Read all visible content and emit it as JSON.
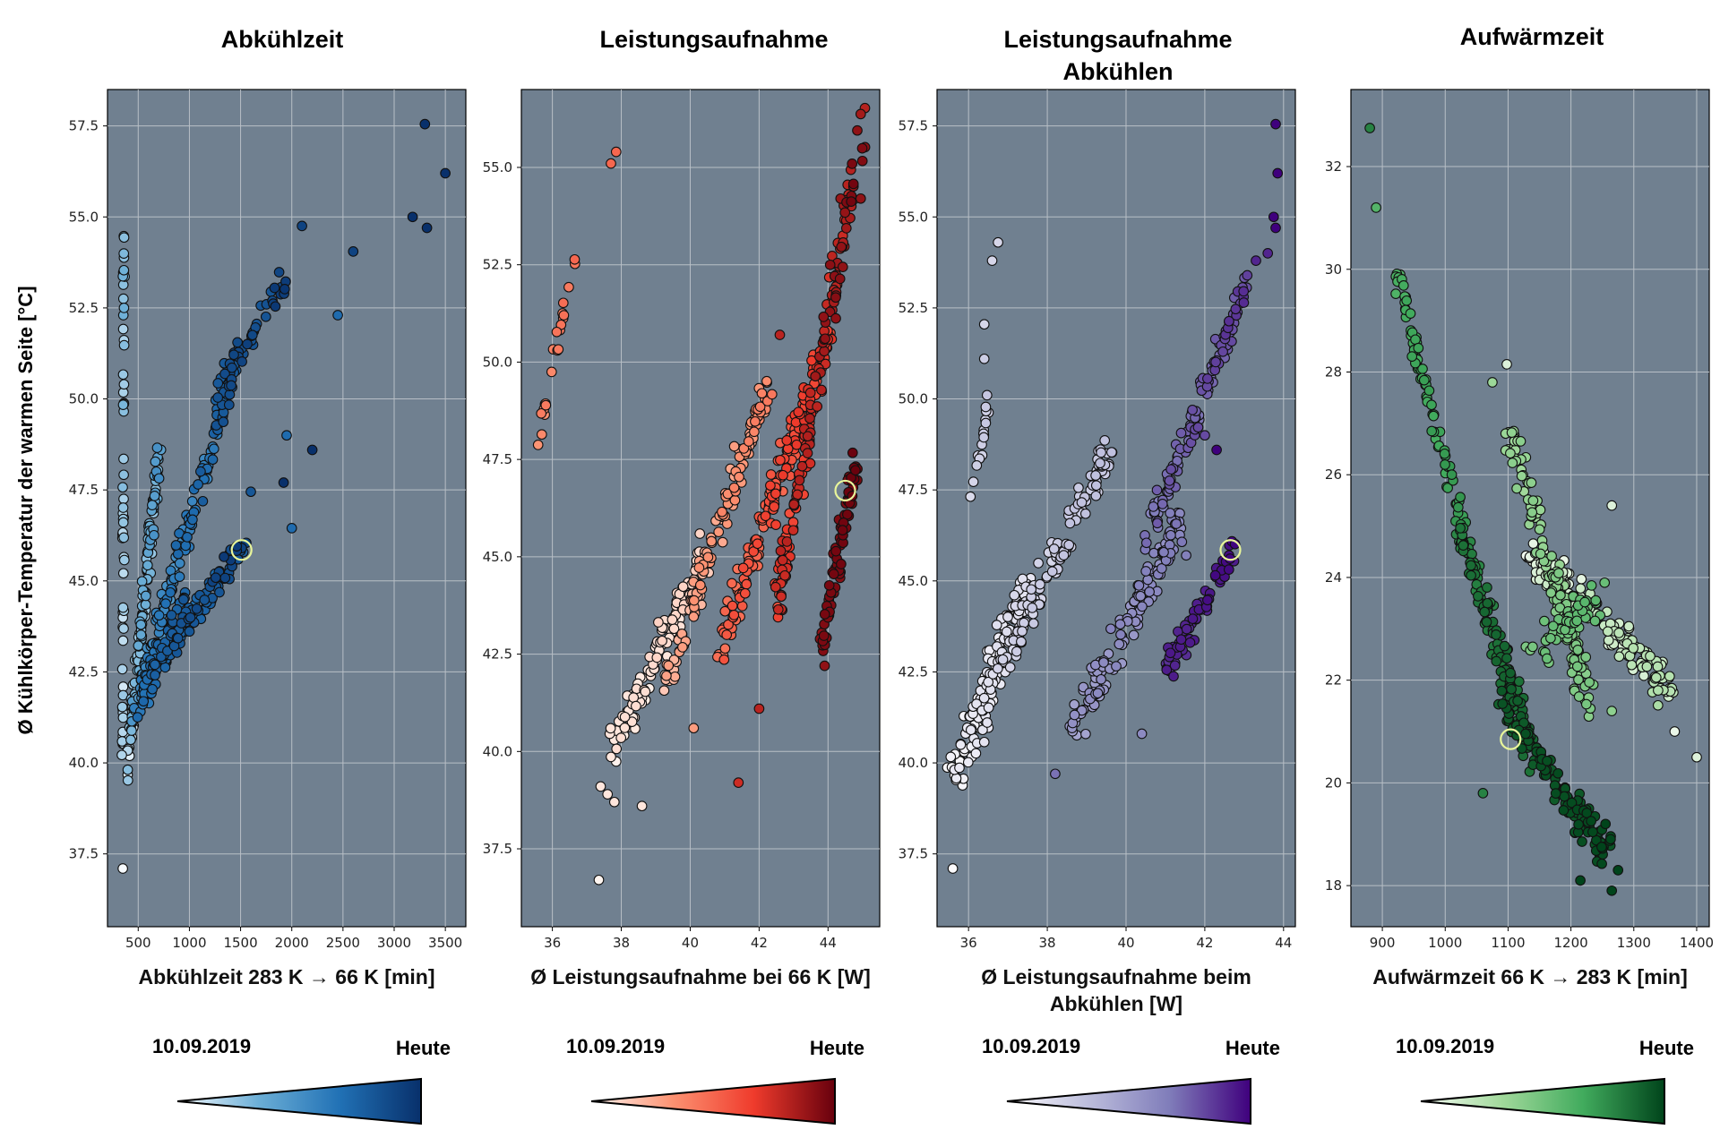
{
  "ylabel": "Ø Kühlkörper-Temperatur der warmen Seite [°C]",
  "chart_data": [
    {
      "type": "scatter",
      "title": "Abkühlzeit",
      "xlabel": "Abkühlzeit 283 K → 66 K [min]",
      "xlim": [
        200,
        3700
      ],
      "ylim": [
        35.5,
        58.5
      ],
      "xticks": [
        500,
        1000,
        1500,
        2000,
        2500,
        3000,
        3500
      ],
      "yticks": [
        37.5,
        40.0,
        42.5,
        45.0,
        47.5,
        50.0,
        52.5,
        55.0,
        57.5
      ],
      "grid": true,
      "colormap": [
        "#f7fbff",
        "#6baed6",
        "#2171b5",
        "#08306b"
      ],
      "legend": {
        "start": "10.09.2019",
        "end": "Heute"
      },
      "highlight": [
        1510,
        45.85
      ],
      "clusters": [
        {
          "a": [
            350,
            40.0
          ],
          "b": [
            360,
            54.3
          ],
          "n": 60,
          "j": [
            15,
            0.35
          ],
          "t": [
            0.05,
            0.35
          ]
        },
        {
          "a": [
            380,
            39.5
          ],
          "b": [
            700,
            48.5
          ],
          "n": 140,
          "j": [
            40,
            0.5
          ],
          "t": [
            0.0,
            0.55
          ]
        },
        {
          "a": [
            420,
            41.0
          ],
          "b": [
            1500,
            51.5
          ],
          "n": 160,
          "j": [
            60,
            0.6
          ],
          "t": [
            0.3,
            0.9
          ]
        },
        {
          "a": [
            1200,
            50.0
          ],
          "b": [
            2000,
            53.5
          ],
          "n": 50,
          "j": [
            80,
            0.5
          ],
          "t": [
            0.7,
            1.0
          ]
        },
        {
          "a": [
            600,
            42.5
          ],
          "b": [
            1550,
            46.0
          ],
          "n": 110,
          "j": [
            60,
            0.6
          ],
          "t": [
            0.5,
            1.0
          ]
        },
        {
          "a": [
            500,
            41.5
          ],
          "b": [
            1000,
            44.5
          ],
          "n": 60,
          "j": [
            80,
            0.8
          ],
          "t": [
            0.6,
            0.85
          ]
        }
      ],
      "points": [
        {
          "x": 350,
          "y": 37.1,
          "t": 0.0
        },
        {
          "x": 2100,
          "y": 54.75,
          "t": 0.9
        },
        {
          "x": 2600,
          "y": 54.05,
          "t": 0.9
        },
        {
          "x": 2450,
          "y": 52.3,
          "t": 0.7
        },
        {
          "x": 3300,
          "y": 57.55,
          "t": 1.0
        },
        {
          "x": 3500,
          "y": 56.2,
          "t": 1.0
        },
        {
          "x": 3180,
          "y": 55.0,
          "t": 1.0
        },
        {
          "x": 3320,
          "y": 54.7,
          "t": 1.0
        },
        {
          "x": 2200,
          "y": 48.6,
          "t": 1.0
        },
        {
          "x": 1950,
          "y": 49.0,
          "t": 0.7
        },
        {
          "x": 1920,
          "y": 47.7,
          "t": 1.0
        },
        {
          "x": 2000,
          "y": 46.45,
          "t": 0.7
        },
        {
          "x": 1600,
          "y": 47.45,
          "t": 0.8
        }
      ]
    },
    {
      "type": "scatter",
      "title": "Leistungsaufnahme",
      "xlabel": "Ø Leistungsaufnahme bei 66 K [W]",
      "xlim": [
        35.1,
        45.5
      ],
      "ylim": [
        35.5,
        57.0
      ],
      "xticks": [
        36,
        38,
        40,
        42,
        44
      ],
      "yticks": [
        37.5,
        40.0,
        42.5,
        45.0,
        47.5,
        50.0,
        52.5,
        55.0
      ],
      "grid": true,
      "colormap": [
        "#fff5f0",
        "#fc9272",
        "#ef3b2c",
        "#67000d"
      ],
      "legend": {
        "start": "10.09.2019",
        "end": "Heute"
      },
      "highlight": [
        44.5,
        46.7
      ],
      "clusters": [
        {
          "a": [
            35.5,
            47.6
          ],
          "b": [
            36.6,
            52.5
          ],
          "n": 22,
          "j": [
            0.12,
            0.3
          ],
          "t": [
            0.3,
            0.5
          ]
        },
        {
          "a": [
            37.8,
            40.0
          ],
          "b": [
            40.5,
            45.3
          ],
          "n": 120,
          "j": [
            0.35,
            0.7
          ],
          "t": [
            0.0,
            0.15
          ]
        },
        {
          "a": [
            39.3,
            41.8
          ],
          "b": [
            42.3,
            49.5
          ],
          "n": 120,
          "j": [
            0.25,
            0.6
          ],
          "t": [
            0.15,
            0.45
          ]
        },
        {
          "a": [
            40.8,
            42.5
          ],
          "b": [
            44.0,
            50.5
          ],
          "n": 160,
          "j": [
            0.3,
            0.8
          ],
          "t": [
            0.4,
            0.75
          ]
        },
        {
          "a": [
            42.5,
            43.5
          ],
          "b": [
            45.0,
            56.0
          ],
          "n": 160,
          "j": [
            0.25,
            0.9
          ],
          "t": [
            0.55,
            1.0
          ]
        },
        {
          "a": [
            43.8,
            42.5
          ],
          "b": [
            44.8,
            47.5
          ],
          "n": 80,
          "j": [
            0.2,
            0.6
          ],
          "t": [
            0.9,
            1.0
          ]
        }
      ],
      "points": [
        {
          "x": 37.7,
          "y": 55.1,
          "t": 0.5
        },
        {
          "x": 37.85,
          "y": 55.4,
          "t": 0.5
        },
        {
          "x": 37.35,
          "y": 36.7,
          "t": 0.0
        },
        {
          "x": 37.4,
          "y": 39.1,
          "t": 0.05
        },
        {
          "x": 37.6,
          "y": 38.9,
          "t": 0.05
        },
        {
          "x": 37.8,
          "y": 38.7,
          "t": 0.05
        },
        {
          "x": 38.6,
          "y": 38.6,
          "t": 0.05
        },
        {
          "x": 40.1,
          "y": 40.6,
          "t": 0.3
        },
        {
          "x": 41.4,
          "y": 39.2,
          "t": 0.75
        },
        {
          "x": 42.0,
          "y": 41.1,
          "t": 0.8
        },
        {
          "x": 43.9,
          "y": 42.2,
          "t": 0.9
        },
        {
          "x": 42.6,
          "y": 50.7,
          "t": 0.8
        },
        {
          "x": 44.85,
          "y": 55.95,
          "t": 0.9
        },
        {
          "x": 44.95,
          "y": 54.2,
          "t": 0.9
        }
      ]
    },
    {
      "type": "scatter",
      "title": "Leistungsaufnahme Abkühlen",
      "title_lines": [
        "Leistungsaufnahme",
        "Abkühlen"
      ],
      "xlabel": "Ø Leistungsaufnahme beim Abkühlen [W]",
      "xlabel_lines": [
        "Ø Leistungsaufnahme beim",
        "Abkühlen [W]"
      ],
      "xlim": [
        35.2,
        44.3
      ],
      "ylim": [
        35.5,
        58.5
      ],
      "xticks": [
        36,
        38,
        40,
        42,
        44
      ],
      "yticks": [
        37.5,
        40.0,
        42.5,
        45.0,
        47.5,
        50.0,
        52.5,
        55.0,
        57.5
      ],
      "grid": true,
      "colormap": [
        "#fcfbfd",
        "#bcbddc",
        "#807dba",
        "#3f007d"
      ],
      "legend": {
        "start": "10.09.2019",
        "end": "Heute"
      },
      "highlight": [
        42.65,
        45.85
      ],
      "clusters": [
        {
          "a": [
            36.1,
            47.4
          ],
          "b": [
            36.5,
            49.9
          ],
          "n": 18,
          "j": [
            0.08,
            0.3
          ],
          "t": [
            0.15,
            0.3
          ]
        },
        {
          "a": [
            35.6,
            39.5
          ],
          "b": [
            37.5,
            45.0
          ],
          "n": 170,
          "j": [
            0.35,
            0.9
          ],
          "t": [
            0.0,
            0.2
          ]
        },
        {
          "a": [
            36.8,
            42.5
          ],
          "b": [
            39.6,
            48.7
          ],
          "n": 110,
          "j": [
            0.3,
            0.7
          ],
          "t": [
            0.15,
            0.35
          ]
        },
        {
          "a": [
            38.7,
            41.0
          ],
          "b": [
            41.3,
            46.5
          ],
          "n": 130,
          "j": [
            0.35,
            0.9
          ],
          "t": [
            0.45,
            0.7
          ]
        },
        {
          "a": [
            40.5,
            46.0
          ],
          "b": [
            43.2,
            53.5
          ],
          "n": 120,
          "j": [
            0.2,
            0.7
          ],
          "t": [
            0.6,
            0.9
          ]
        },
        {
          "a": [
            41.0,
            42.5
          ],
          "b": [
            42.7,
            45.8
          ],
          "n": 70,
          "j": [
            0.25,
            0.6
          ],
          "t": [
            0.85,
            1.0
          ]
        }
      ],
      "points": [
        {
          "x": 35.6,
          "y": 37.1,
          "t": 0.0
        },
        {
          "x": 36.6,
          "y": 53.8,
          "t": 0.2
        },
        {
          "x": 36.75,
          "y": 54.3,
          "t": 0.2
        },
        {
          "x": 36.4,
          "y": 52.05,
          "t": 0.2
        },
        {
          "x": 36.4,
          "y": 51.1,
          "t": 0.25
        },
        {
          "x": 43.8,
          "y": 57.55,
          "t": 1.0
        },
        {
          "x": 43.85,
          "y": 56.2,
          "t": 1.0
        },
        {
          "x": 43.75,
          "y": 55.0,
          "t": 1.0
        },
        {
          "x": 43.8,
          "y": 54.7,
          "t": 1.0
        },
        {
          "x": 43.6,
          "y": 54.0,
          "t": 0.9
        },
        {
          "x": 43.3,
          "y": 53.8,
          "t": 0.9
        },
        {
          "x": 42.3,
          "y": 48.6,
          "t": 1.0
        },
        {
          "x": 42.0,
          "y": 49.0,
          "t": 0.8
        },
        {
          "x": 40.4,
          "y": 40.8,
          "t": 0.6
        },
        {
          "x": 38.2,
          "y": 39.7,
          "t": 0.7
        }
      ]
    },
    {
      "type": "scatter",
      "title": "Aufwärmzeit",
      "xlabel": "Aufwärmzeit 66 K → 283 K [min]",
      "xlim": [
        850,
        1420
      ],
      "ylim": [
        17.2,
        33.5
      ],
      "xticks": [
        900,
        1000,
        1100,
        1200,
        1300,
        1400
      ],
      "yticks": [
        18,
        20,
        22,
        24,
        26,
        28,
        30,
        32
      ],
      "grid": true,
      "colormap": [
        "#f7fcf5",
        "#a1d99b",
        "#41ab5d",
        "#00441b"
      ],
      "legend": {
        "start": "10.09.2019",
        "end": "Heute"
      },
      "highlight": [
        1104,
        20.85
      ],
      "clusters": [
        {
          "a": [
            920,
            30.0
          ],
          "b": [
            1030,
            24.8
          ],
          "n": 80,
          "j": [
            10,
            0.35
          ],
          "t": [
            0.6,
            0.75
          ]
        },
        {
          "a": [
            1020,
            25.0
          ],
          "b": [
            1140,
            20.5
          ],
          "n": 150,
          "j": [
            15,
            0.5
          ],
          "t": [
            0.75,
            0.95
          ]
        },
        {
          "a": [
            1090,
            21.5
          ],
          "b": [
            1260,
            18.6
          ],
          "n": 110,
          "j": [
            18,
            0.5
          ],
          "t": [
            0.9,
            1.0
          ]
        },
        {
          "a": [
            1100,
            27.0
          ],
          "b": [
            1230,
            21.5
          ],
          "n": 140,
          "j": [
            20,
            0.5
          ],
          "t": [
            0.3,
            0.5
          ]
        },
        {
          "a": [
            1130,
            24.5
          ],
          "b": [
            1360,
            21.8
          ],
          "n": 170,
          "j": [
            25,
            0.6
          ],
          "t": [
            0.0,
            0.3
          ]
        },
        {
          "a": [
            1150,
            22.6
          ],
          "b": [
            1240,
            23.6
          ],
          "n": 60,
          "j": [
            30,
            0.6
          ],
          "t": [
            0.45,
            0.6
          ]
        }
      ],
      "points": [
        {
          "x": 880,
          "y": 32.75,
          "t": 0.8
        },
        {
          "x": 890,
          "y": 31.2,
          "t": 0.6
        },
        {
          "x": 1075,
          "y": 27.8,
          "t": 0.35
        },
        {
          "x": 1098,
          "y": 28.15,
          "t": 0.1
        },
        {
          "x": 1265,
          "y": 25.4,
          "t": 0.1
        },
        {
          "x": 1400,
          "y": 20.5,
          "t": 0.1
        },
        {
          "x": 1365,
          "y": 21.0,
          "t": 0.05
        },
        {
          "x": 1265,
          "y": 21.4,
          "t": 0.4
        },
        {
          "x": 1265,
          "y": 17.9,
          "t": 1.0
        },
        {
          "x": 1275,
          "y": 18.3,
          "t": 1.0
        },
        {
          "x": 1215,
          "y": 18.1,
          "t": 1.0
        },
        {
          "x": 1255,
          "y": 19.2,
          "t": 1.0
        },
        {
          "x": 1060,
          "y": 19.8,
          "t": 0.8
        }
      ]
    }
  ]
}
